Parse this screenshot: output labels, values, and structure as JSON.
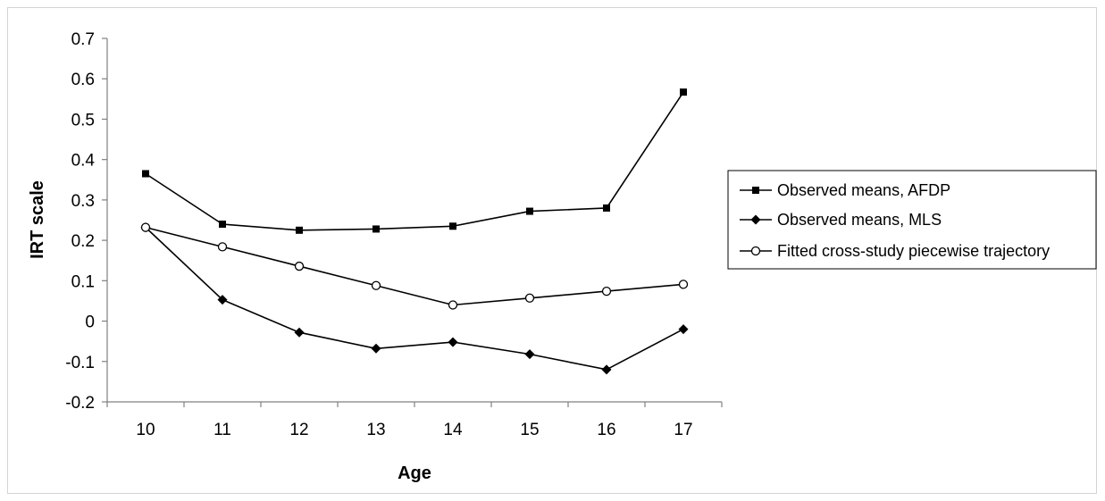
{
  "chart_data": {
    "type": "line",
    "title": "",
    "xlabel": "Age",
    "ylabel": "IRT scale",
    "x": [
      10,
      11,
      12,
      13,
      14,
      15,
      16,
      17
    ],
    "x_tick_labels": [
      "10",
      "11",
      "12",
      "13",
      "14",
      "15",
      "16",
      "17"
    ],
    "ylim": [
      -0.2,
      0.7
    ],
    "y_ticks": [
      -0.2,
      -0.1,
      0,
      0.1,
      0.2,
      0.3,
      0.4,
      0.5,
      0.6,
      0.7
    ],
    "y_tick_labels": [
      "-0.2",
      "-0.1",
      "0",
      "0.1",
      "0.2",
      "0.3",
      "0.4",
      "0.5",
      "0.6",
      "0.7"
    ],
    "grid": false,
    "legend_position": "right",
    "series": [
      {
        "name": "Observed means, AFDP",
        "marker": "square",
        "color": "#000000",
        "values": [
          0.365,
          0.24,
          0.225,
          0.228,
          0.235,
          0.272,
          0.28,
          0.567
        ]
      },
      {
        "name": "Observed means, MLS",
        "marker": "diamond",
        "color": "#000000",
        "values": [
          0.232,
          0.053,
          -0.028,
          -0.068,
          -0.052,
          -0.082,
          -0.12,
          -0.02
        ]
      },
      {
        "name": "Fitted cross-study piecewise trajectory",
        "marker": "circle-open",
        "color": "#000000",
        "values": [
          0.232,
          0.184,
          0.136,
          0.088,
          0.04,
          0.057,
          0.074,
          0.091
        ]
      }
    ]
  }
}
